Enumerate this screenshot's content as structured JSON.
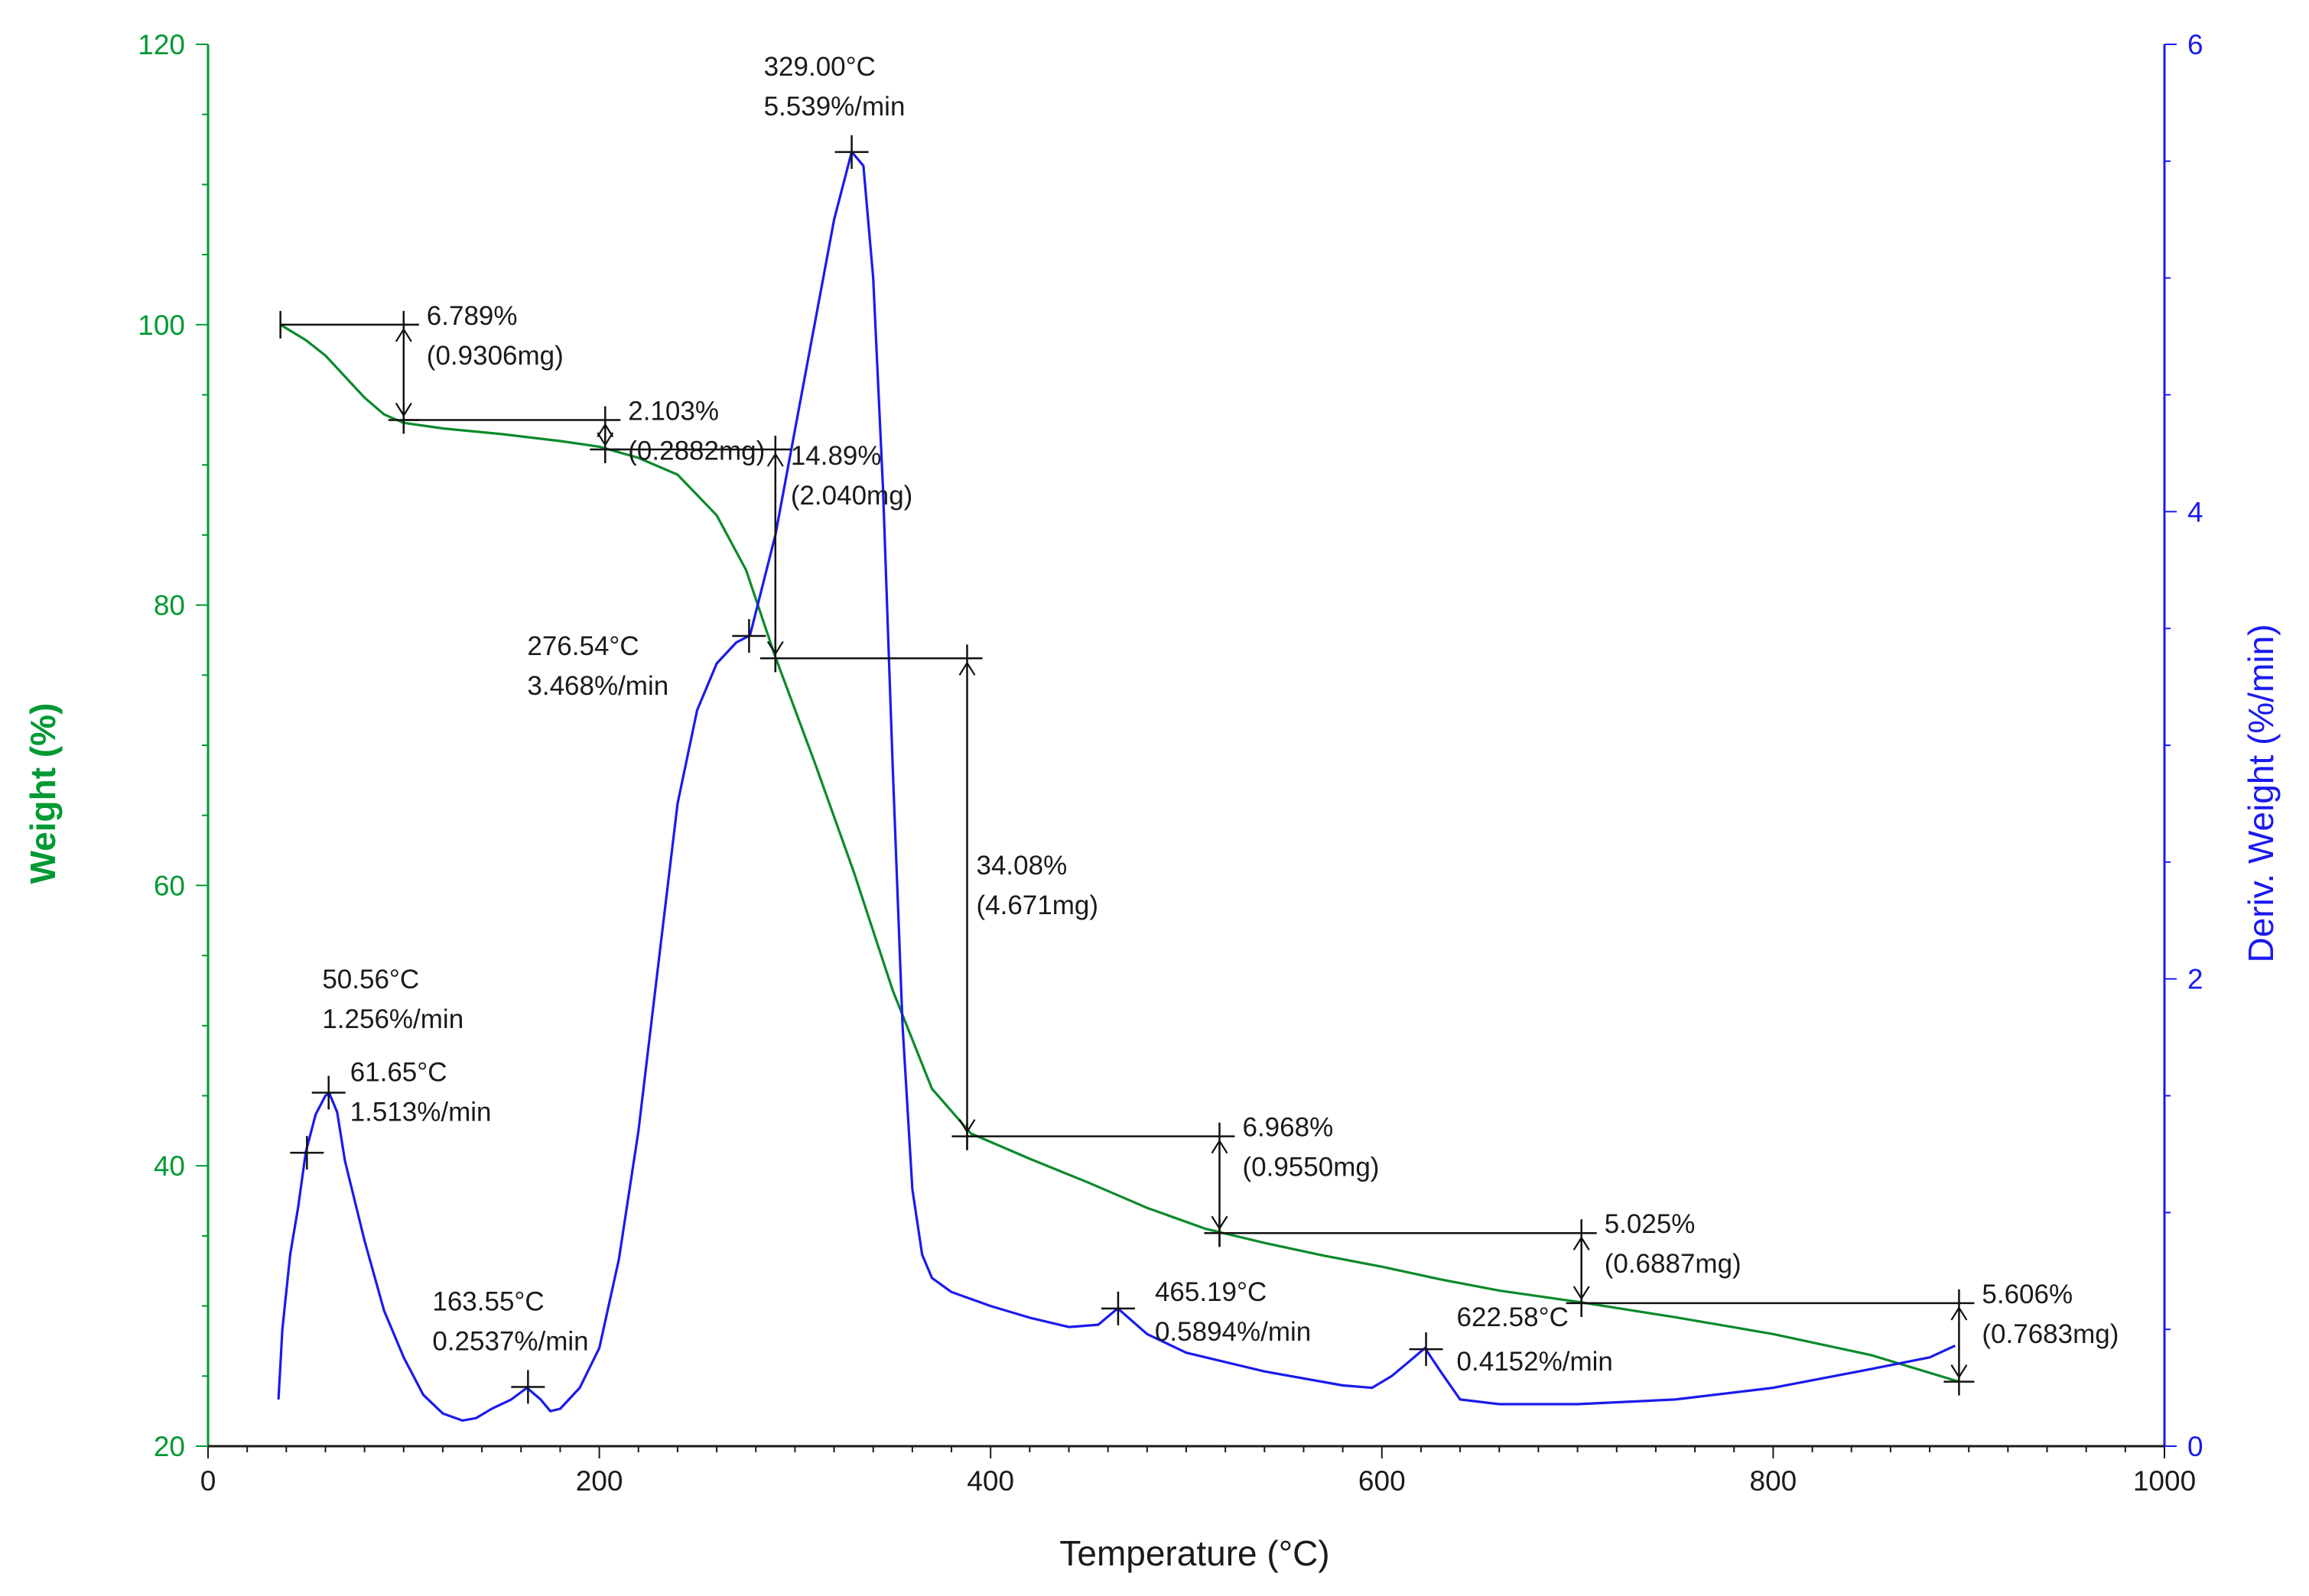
{
  "chart_data": {
    "type": "line",
    "title": "",
    "xlabel": "Temperature (°C)",
    "ylabel_left": "Weight (%)",
    "ylabel_right": "Deriv. Weight (%/min)",
    "xlim": [
      0,
      1000
    ],
    "ylim_left": [
      20,
      120
    ],
    "ylim_right": [
      0,
      6
    ],
    "x_ticks": [
      "0",
      "200",
      "400",
      "600",
      "800",
      "1000"
    ],
    "y_left_ticks": [
      "20",
      "40",
      "60",
      "80",
      "100",
      "120"
    ],
    "y_right_ticks": [
      "0",
      "2",
      "4",
      "6"
    ],
    "colors": {
      "weight": "#0a8a2a",
      "deriv": "#1a1aee",
      "annotation": "#111111",
      "left_axis": "#009933",
      "right_axis": "#1a1aee"
    },
    "series": [
      {
        "name": "Weight (%)",
        "axis": "left",
        "x": [
          37,
          50,
          60,
          70,
          80,
          90,
          100,
          120,
          150,
          180,
          200,
          220,
          240,
          260,
          275,
          290,
          310,
          330,
          350,
          370,
          390,
          420,
          450,
          480,
          510,
          540,
          570,
          600,
          630,
          660,
          700,
          750,
          800,
          850,
          895
        ],
        "y": [
          100,
          98.9,
          97.8,
          96.3,
          94.8,
          93.6,
          93.0,
          92.6,
          92.2,
          91.7,
          91.3,
          90.5,
          89.3,
          86.4,
          82.5,
          76.3,
          68.8,
          61.0,
          52.5,
          45.5,
          42.3,
          40.5,
          38.8,
          37.0,
          35.5,
          34.5,
          33.6,
          32.8,
          31.9,
          31.1,
          30.3,
          29.2,
          28.0,
          26.5,
          24.6
        ]
      },
      {
        "name": "Deriv. Weight (%/min)",
        "axis": "right",
        "x": [
          36,
          38,
          42,
          46,
          50,
          55,
          60,
          62,
          66,
          70,
          80,
          90,
          100,
          110,
          120,
          130,
          137,
          145,
          155,
          163,
          170,
          175,
          180,
          190,
          200,
          210,
          220,
          230,
          240,
          250,
          260,
          270,
          277,
          290,
          300,
          310,
          320,
          329,
          335,
          340,
          345,
          350,
          355,
          360,
          365,
          370,
          380,
          400,
          420,
          440,
          455,
          465,
          480,
          500,
          540,
          580,
          595,
          605,
          615,
          622,
          630,
          640,
          660,
          700,
          750,
          800,
          850,
          880,
          893
        ],
        "y": [
          0.2,
          0.5,
          0.82,
          1.02,
          1.26,
          1.42,
          1.5,
          1.51,
          1.43,
          1.22,
          0.88,
          0.58,
          0.38,
          0.22,
          0.14,
          0.11,
          0.12,
          0.16,
          0.2,
          0.25,
          0.2,
          0.15,
          0.16,
          0.25,
          0.42,
          0.8,
          1.35,
          2.05,
          2.75,
          3.15,
          3.35,
          3.44,
          3.47,
          3.9,
          4.35,
          4.8,
          5.25,
          5.54,
          5.48,
          5.0,
          4.1,
          2.9,
          1.8,
          1.1,
          0.82,
          0.72,
          0.66,
          0.6,
          0.55,
          0.51,
          0.52,
          0.59,
          0.48,
          0.4,
          0.32,
          0.26,
          0.25,
          0.3,
          0.37,
          0.42,
          0.32,
          0.2,
          0.18,
          0.18,
          0.2,
          0.25,
          0.33,
          0.38,
          0.43
        ]
      }
    ],
    "point_annotations": [
      {
        "x": 50.56,
        "y2": 1.256,
        "label1": "50.56°C",
        "label2": "1.256%/min"
      },
      {
        "x": 61.65,
        "y2": 1.513,
        "label1": "61.65°C",
        "label2": "1.513%/min"
      },
      {
        "x": 163.55,
        "y2": 0.2537,
        "label1": "163.55°C",
        "label2": "0.2537%/min"
      },
      {
        "x": 276.54,
        "y2": 3.468,
        "label1": "276.54°C",
        "label2": "3.468%/min"
      },
      {
        "x": 329.0,
        "y2": 5.539,
        "label1": "329.00°C",
        "label2": "5.539%/min"
      },
      {
        "x": 465.19,
        "y2": 0.5894,
        "label1": "465.19°C",
        "label2": "0.5894%/min"
      },
      {
        "x": 622.58,
        "y2": 0.4152,
        "label1": "622.58°C",
        "label2": "0.4152%/min"
      }
    ],
    "step_annotations": [
      {
        "x_from": 37,
        "x_to": 100,
        "y_top": 100.0,
        "y_bottom": 93.2,
        "label1": "6.789%",
        "label2": "(0.9306mg)"
      },
      {
        "x_from": 100,
        "x_to": 203,
        "y_top": 93.2,
        "y_bottom": 91.1,
        "label1": "2.103%",
        "label2": "(0.2882mg)"
      },
      {
        "x_from": 203,
        "x_to": 290,
        "y_top": 91.1,
        "y_bottom": 76.2,
        "label1": "14.89%",
        "label2": "(2.040mg)"
      },
      {
        "x_from": 290,
        "x_to": 388,
        "y_top": 76.2,
        "y_bottom": 42.1,
        "label1": "34.08%",
        "label2": "(4.671mg)"
      },
      {
        "x_from": 388,
        "x_to": 517,
        "y_top": 42.1,
        "y_bottom": 35.2,
        "label1": "6.968%",
        "label2": "(0.9550mg)"
      },
      {
        "x_from": 517,
        "x_to": 702,
        "y_top": 35.2,
        "y_bottom": 30.2,
        "label1": "5.025%",
        "label2": "(0.6887mg)"
      },
      {
        "x_from": 702,
        "x_to": 895,
        "y_top": 30.2,
        "y_bottom": 24.6,
        "label1": "5.606%",
        "label2": "(0.7683mg)"
      }
    ]
  }
}
